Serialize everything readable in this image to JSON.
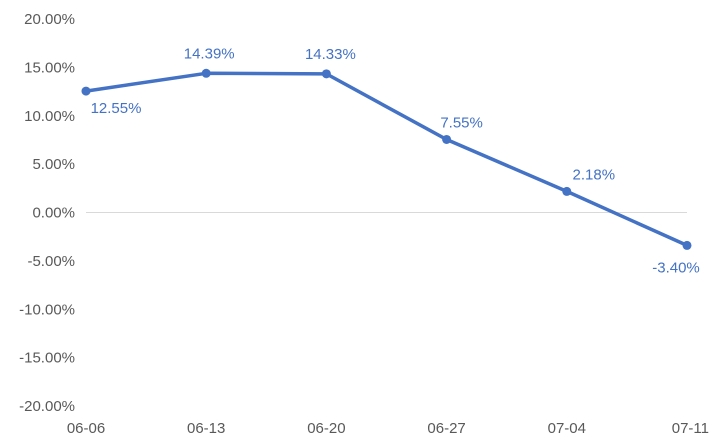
{
  "chart_data": {
    "type": "line",
    "categories": [
      "06-06",
      "06-13",
      "06-20",
      "06-27",
      "07-04",
      "07-11"
    ],
    "series": [
      {
        "values": [
          12.55,
          14.39,
          14.33,
          7.55,
          2.18,
          -3.4
        ],
        "labels": [
          "12.55%",
          "14.39%",
          "14.33%",
          "7.55%",
          "2.18%",
          "-3.40%"
        ],
        "color": "#4472C4"
      }
    ],
    "ylim": [
      -20,
      20
    ],
    "yticks": [
      20,
      15,
      10,
      5,
      0,
      -5,
      -10,
      -15,
      -20
    ],
    "ytick_labels": [
      "20.00%",
      "15.00%",
      "10.00%",
      "5.00%",
      "0.00%",
      "-5.00%",
      "-10.00%",
      "-15.00%",
      "-20.00%"
    ],
    "grid": false,
    "zero_line": true,
    "legend": "none"
  },
  "colors": {
    "series": "#4472C4",
    "tick_text": "#595959",
    "zero_line": "#D9D9D9"
  }
}
